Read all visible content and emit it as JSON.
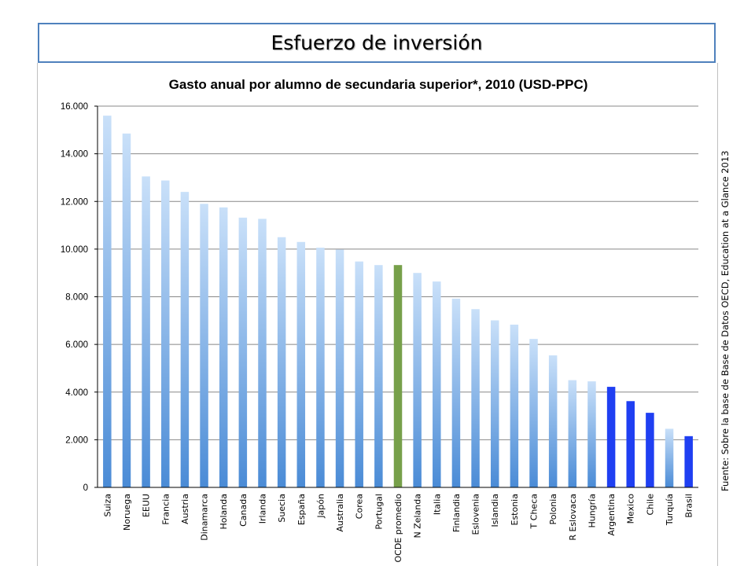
{
  "slide": {
    "title": "Esfuerzo de inversión",
    "source": "Fuente: Sobre la base de Base de Datos OECD, Education at a Glance 2013"
  },
  "colors": {
    "default_top": "#c9e0f9",
    "default_bottom": "#4a8bd6",
    "oecd": "#77a04a",
    "latam": "#1f3ff2"
  },
  "chart_data": {
    "type": "bar",
    "title": "Gasto anual por alumno de secundaria superior*, 2010 (USD-PPC)",
    "xlabel": "",
    "ylabel": "",
    "ylim": [
      0,
      16000
    ],
    "yticks": [
      0,
      2000,
      4000,
      6000,
      8000,
      10000,
      12000,
      14000,
      16000
    ],
    "ytick_labels": [
      "0",
      "2.000",
      "4.000",
      "6.000",
      "8.000",
      "10.000",
      "12.000",
      "14.000",
      "16.000"
    ],
    "grid": true,
    "legend": "none",
    "categories": [
      "Suiza",
      "Noruega",
      "EEUU",
      "Francia",
      "Austria",
      "Dinamarca",
      "Holanda",
      "Canada",
      "Irlanda",
      "Suecia",
      "España",
      "Japón",
      "Australia",
      "Corea",
      "Portugal",
      "OCDE promedio",
      "N Zelanda",
      "Italia",
      "Finlandia",
      "Eslovenia",
      "Islandia",
      "Estonia",
      "T Checa",
      "Polonia",
      "R Eslovaca",
      "Hungría",
      "Argentina",
      "Mexico",
      "Chile",
      "Turquía",
      "Brasil"
    ],
    "values": [
      15600,
      14850,
      13050,
      12880,
      12400,
      11900,
      11750,
      11320,
      11270,
      10500,
      10300,
      10060,
      9980,
      9480,
      9330,
      9330,
      9000,
      8640,
      7920,
      7480,
      7010,
      6830,
      6230,
      5540,
      4500,
      4450,
      4220,
      3620,
      3130,
      2460,
      2150
    ],
    "bar_color_groups": [
      "default",
      "default",
      "default",
      "default",
      "default",
      "default",
      "default",
      "default",
      "default",
      "default",
      "default",
      "default",
      "default",
      "default",
      "default",
      "oecd",
      "default",
      "default",
      "default",
      "default",
      "default",
      "default",
      "default",
      "default",
      "default",
      "default",
      "latam",
      "latam",
      "latam",
      "default",
      "latam"
    ]
  }
}
